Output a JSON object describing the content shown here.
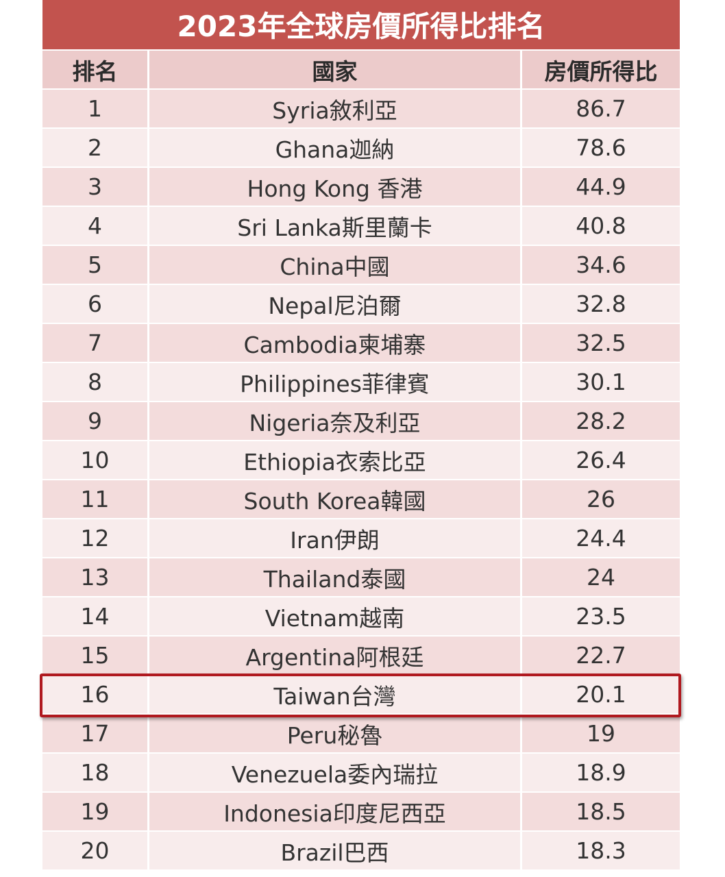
{
  "chart_data": {
    "type": "table",
    "title": "2023年全球房價所得比排名",
    "columns": [
      "排名",
      "國家",
      "房價所得比"
    ],
    "rows": [
      {
        "rank": "1",
        "country": "Syria敘利亞",
        "ratio": "86.7"
      },
      {
        "rank": "2",
        "country": "Ghana迦納",
        "ratio": "78.6"
      },
      {
        "rank": "3",
        "country": "Hong Kong 香港",
        "ratio": "44.9"
      },
      {
        "rank": "4",
        "country": "Sri Lanka斯里蘭卡",
        "ratio": "40.8"
      },
      {
        "rank": "5",
        "country": "China中國",
        "ratio": "34.6"
      },
      {
        "rank": "6",
        "country": "Nepal尼泊爾",
        "ratio": "32.8"
      },
      {
        "rank": "7",
        "country": "Cambodia柬埔寨",
        "ratio": "32.5"
      },
      {
        "rank": "8",
        "country": "Philippines菲律賓",
        "ratio": "30.1"
      },
      {
        "rank": "9",
        "country": "Nigeria奈及利亞",
        "ratio": "28.2"
      },
      {
        "rank": "10",
        "country": "Ethiopia衣索比亞",
        "ratio": "26.4"
      },
      {
        "rank": "11",
        "country": "South Korea韓國",
        "ratio": "26"
      },
      {
        "rank": "12",
        "country": "Iran伊朗",
        "ratio": "24.4"
      },
      {
        "rank": "13",
        "country": "Thailand泰國",
        "ratio": "24"
      },
      {
        "rank": "14",
        "country": "Vietnam越南",
        "ratio": "23.5"
      },
      {
        "rank": "15",
        "country": "Argentina阿根廷",
        "ratio": "22.7"
      },
      {
        "rank": "16",
        "country": "Taiwan台灣",
        "ratio": "20.1",
        "highlighted": true
      },
      {
        "rank": "17",
        "country": "Peru秘魯",
        "ratio": "19"
      },
      {
        "rank": "18",
        "country": "Venezuela委內瑞拉",
        "ratio": "18.9"
      },
      {
        "rank": "19",
        "country": "Indonesia印度尼西亞",
        "ratio": "18.5"
      },
      {
        "rank": "20",
        "country": "Brazil巴西",
        "ratio": "18.3"
      }
    ],
    "colors": {
      "header": "#c2534e",
      "highlight": "#b0191f"
    }
  }
}
